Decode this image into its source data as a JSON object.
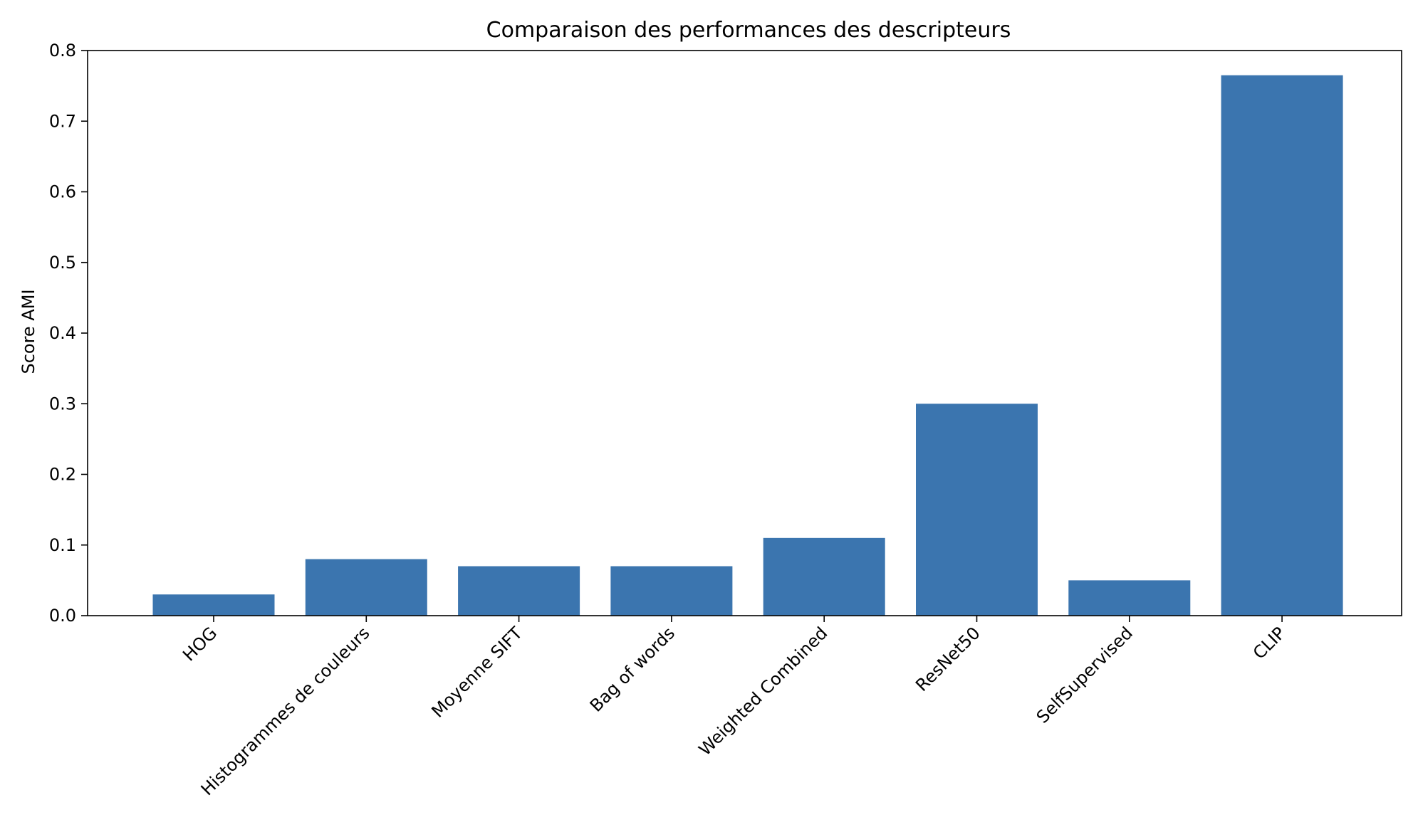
{
  "chart_data": {
    "type": "bar",
    "title": "Comparaison des performances des descripteurs",
    "xlabel": "",
    "ylabel": "Score AMI",
    "categories": [
      "HOG",
      "Histogrammes de couleurs",
      "Moyenne SIFT",
      "Bag of words",
      "Weighted Combined",
      "ResNet50",
      "SelfSupervised",
      "CLIP"
    ],
    "values": [
      0.03,
      0.08,
      0.07,
      0.07,
      0.11,
      0.3,
      0.05,
      0.765
    ],
    "ylim": [
      0,
      0.8
    ],
    "yticks": [
      "0.0",
      "0.1",
      "0.2",
      "0.3",
      "0.4",
      "0.5",
      "0.6",
      "0.7",
      "0.8"
    ],
    "bar_color": "#3b75af",
    "grid": false,
    "legend": "none"
  }
}
